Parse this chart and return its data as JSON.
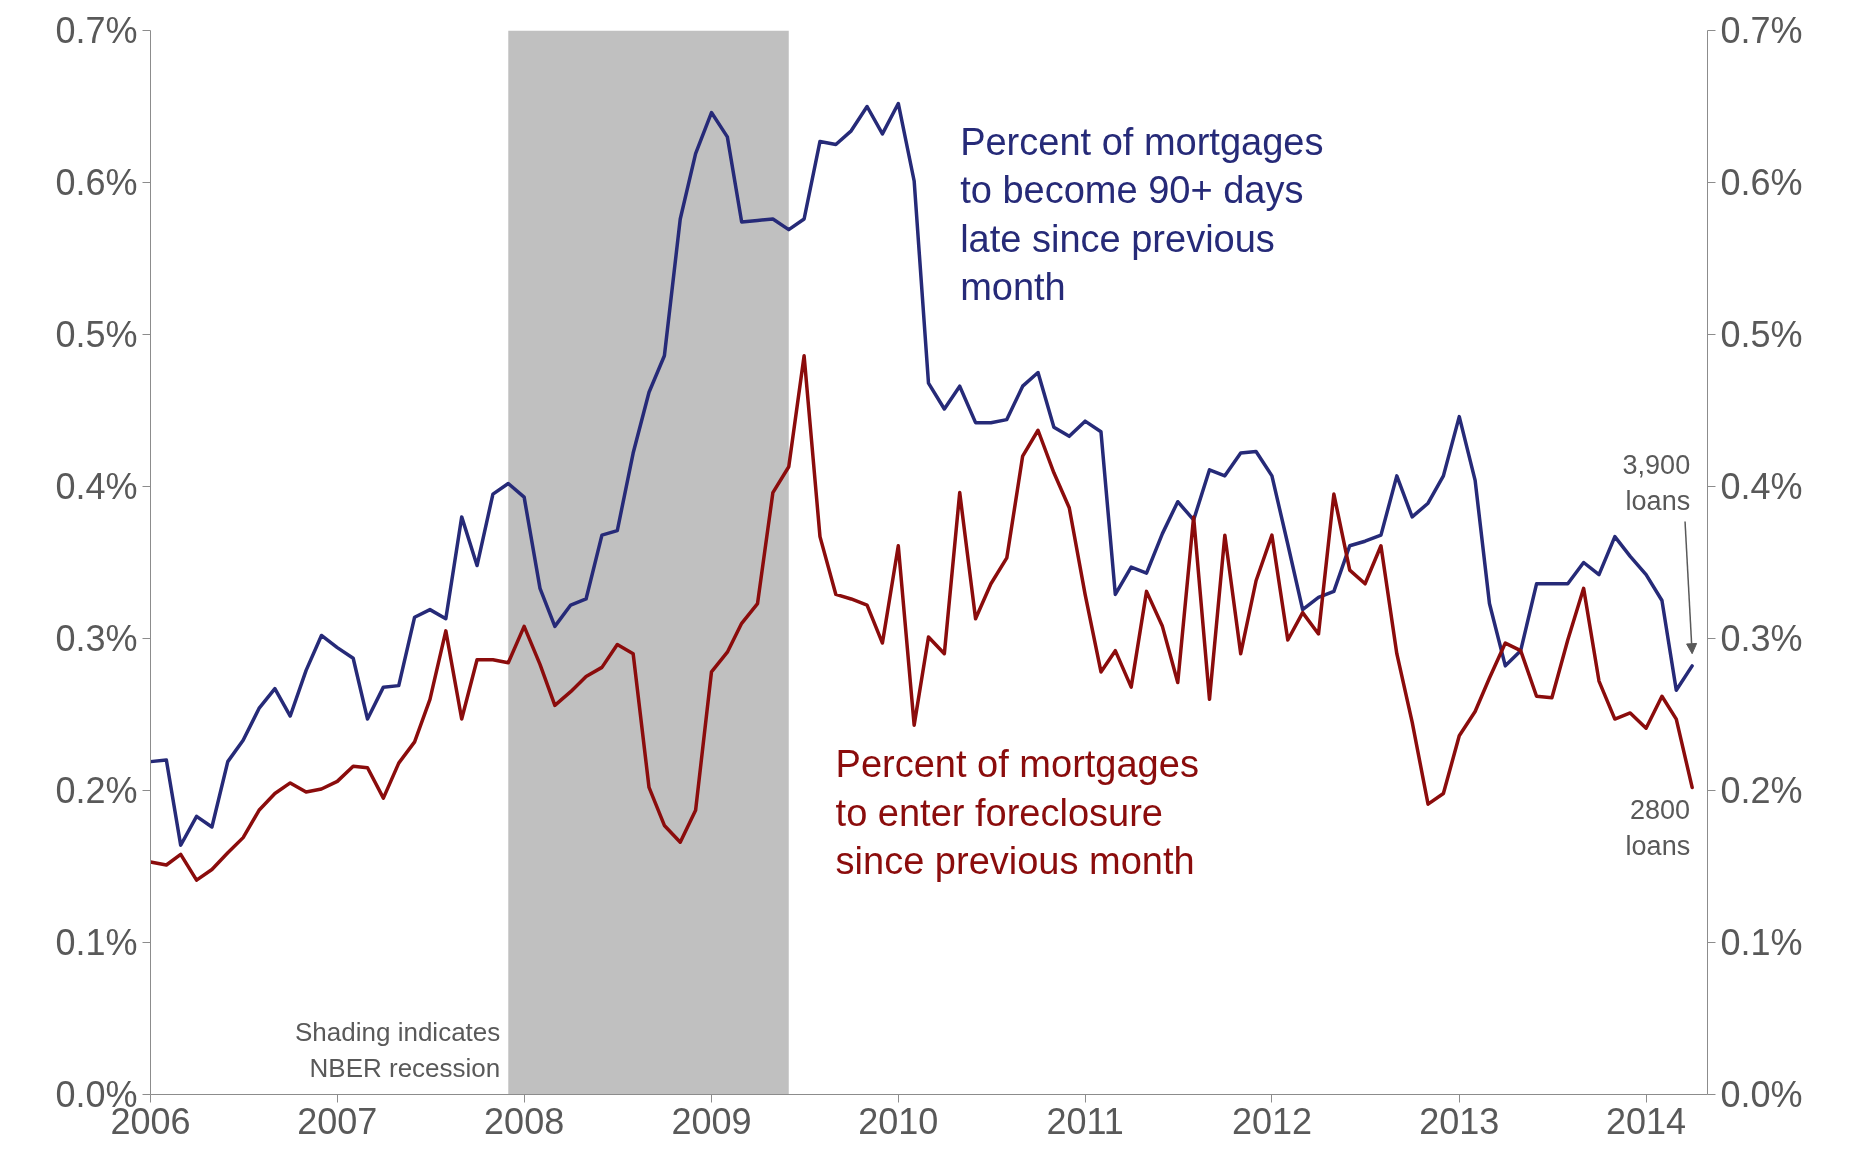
{
  "chart_data": {
    "type": "line",
    "x": [
      "2006-01",
      "2006-02",
      "2006-03",
      "2006-04",
      "2006-05",
      "2006-06",
      "2006-07",
      "2006-08",
      "2006-09",
      "2006-10",
      "2006-11",
      "2006-12",
      "2007-01",
      "2007-02",
      "2007-03",
      "2007-04",
      "2007-05",
      "2007-06",
      "2007-07",
      "2007-08",
      "2007-09",
      "2007-10",
      "2007-11",
      "2007-12",
      "2008-01",
      "2008-02",
      "2008-03",
      "2008-04",
      "2008-05",
      "2008-06",
      "2008-07",
      "2008-08",
      "2008-09",
      "2008-10",
      "2008-11",
      "2008-12",
      "2009-01",
      "2009-02",
      "2009-03",
      "2009-04",
      "2009-05",
      "2009-06",
      "2009-07",
      "2009-08",
      "2009-09",
      "2009-10",
      "2009-11",
      "2009-12",
      "2010-01",
      "2010-02",
      "2010-03",
      "2010-04",
      "2010-05",
      "2010-06",
      "2010-07",
      "2010-08",
      "2010-09",
      "2010-10",
      "2010-11",
      "2010-12",
      "2011-01",
      "2011-02",
      "2011-03",
      "2011-04",
      "2011-05",
      "2011-06",
      "2011-07",
      "2011-08",
      "2011-09",
      "2011-10",
      "2011-11",
      "2011-12",
      "2012-01",
      "2012-02",
      "2012-03",
      "2012-04",
      "2012-05",
      "2012-06",
      "2012-07",
      "2012-08",
      "2012-09",
      "2012-10",
      "2012-11",
      "2012-12",
      "2013-01",
      "2013-02",
      "2013-03",
      "2013-04",
      "2013-05",
      "2013-06",
      "2013-07",
      "2013-08",
      "2013-09",
      "2013-10",
      "2013-11",
      "2013-12",
      "2014-01",
      "2014-02",
      "2014-03",
      "2014-04"
    ],
    "series": [
      {
        "name": "Percent of mortgages to become 90+ days late since previous month",
        "color": "#262a78",
        "values": [
          0.219,
          0.22,
          0.164,
          0.183,
          0.176,
          0.219,
          0.233,
          0.254,
          0.267,
          0.249,
          0.279,
          0.302,
          0.294,
          0.287,
          0.247,
          0.268,
          0.269,
          0.314,
          0.319,
          0.313,
          0.38,
          0.348,
          0.395,
          0.402,
          0.393,
          0.333,
          0.308,
          0.322,
          0.326,
          0.368,
          0.371,
          0.422,
          0.462,
          0.486,
          0.576,
          0.619,
          0.646,
          0.63,
          0.574,
          0.575,
          0.576,
          0.569,
          0.576,
          0.627,
          0.625,
          0.634,
          0.65,
          0.632,
          0.652,
          0.601,
          0.468,
          0.451,
          0.466,
          0.442,
          0.442,
          0.444,
          0.466,
          0.475,
          0.439,
          0.433,
          0.443,
          0.436,
          0.329,
          0.347,
          0.343,
          0.369,
          0.39,
          0.378,
          0.411,
          0.407,
          0.422,
          0.423,
          0.407,
          0.362,
          0.319,
          0.327,
          0.331,
          0.361,
          0.364,
          0.368,
          0.407,
          0.38,
          0.389,
          0.407,
          0.446,
          0.404,
          0.323,
          0.282,
          0.292,
          0.336,
          0.336,
          0.336,
          0.35,
          0.342,
          0.367,
          0.354,
          0.342,
          0.325,
          0.266,
          0.282
        ]
      },
      {
        "name": "Percent of mortgages to enter foreclosure since previous month",
        "color": "#8b0c0c",
        "values": [
          0.153,
          0.151,
          0.158,
          0.141,
          0.148,
          0.159,
          0.169,
          0.187,
          0.198,
          0.205,
          0.199,
          0.201,
          0.206,
          0.216,
          0.215,
          0.195,
          0.218,
          0.232,
          0.26,
          0.305,
          0.247,
          0.286,
          0.286,
          0.284,
          0.308,
          0.283,
          0.256,
          0.265,
          0.275,
          0.281,
          0.296,
          0.29,
          0.202,
          0.177,
          0.166,
          0.187,
          0.278,
          0.291,
          0.31,
          0.323,
          0.396,
          0.413,
          0.486,
          0.367,
          0.329,
          0.326,
          0.322,
          0.297,
          0.361,
          0.243,
          0.301,
          0.29,
          0.396,
          0.313,
          0.336,
          0.353,
          0.42,
          0.437,
          0.409,
          0.386,
          0.329,
          0.278,
          0.292,
          0.268,
          0.331,
          0.308,
          0.271,
          0.38,
          0.26,
          0.368,
          0.29,
          0.338,
          0.368,
          0.299,
          0.317,
          0.303,
          0.395,
          0.345,
          0.336,
          0.361,
          0.29,
          0.245,
          0.191,
          0.198,
          0.236,
          0.252,
          0.274,
          0.297,
          0.292,
          0.262,
          0.261,
          0.299,
          0.333,
          0.272,
          0.247,
          0.251,
          0.241,
          0.262,
          0.247,
          0.202
        ]
      }
    ],
    "xlim": [
      "2006-01",
      "2014-05"
    ],
    "xticks": [
      {
        "value": "2006",
        "label": "2006"
      },
      {
        "value": "2007",
        "label": "2007"
      },
      {
        "value": "2008",
        "label": "2008"
      },
      {
        "value": "2009",
        "label": "2009"
      },
      {
        "value": "2010",
        "label": "2010"
      },
      {
        "value": "2011",
        "label": "2011"
      },
      {
        "value": "2012",
        "label": "2012"
      },
      {
        "value": "2013",
        "label": "2013"
      },
      {
        "value": "2014",
        "label": "2014"
      }
    ],
    "ylim": [
      0,
      0.7
    ],
    "yticks": [
      {
        "value": 0,
        "label": "0.0%"
      },
      {
        "value": 0.1,
        "label": "0.1%"
      },
      {
        "value": 0.2,
        "label": "0.2%"
      },
      {
        "value": 0.3,
        "label": "0.3%"
      },
      {
        "value": 0.4,
        "label": "0.4%"
      },
      {
        "value": 0.5,
        "label": "0.5%"
      },
      {
        "value": 0.6,
        "label": "0.6%"
      },
      {
        "value": 0.7,
        "label": "0.7%"
      }
    ],
    "y2lim": [
      0,
      0.7
    ],
    "y2ticks": [
      {
        "value": 0,
        "label": "0.0%"
      },
      {
        "value": 0.1,
        "label": "0.1%"
      },
      {
        "value": 0.2,
        "label": "0.2%"
      },
      {
        "value": 0.3,
        "label": "0.3%"
      },
      {
        "value": 0.4,
        "label": "0.4%"
      },
      {
        "value": 0.5,
        "label": "0.5%"
      },
      {
        "value": 0.6,
        "label": "0.6%"
      },
      {
        "value": 0.7,
        "label": "0.7%"
      }
    ],
    "bands": [
      {
        "axis": "x",
        "from": "2007-12",
        "to": "2009-06",
        "label": "Shading indicates\nNBER recession",
        "color": "#c0c0c0"
      }
    ],
    "annotations": [
      "3,900\nloans",
      {
        "text": "2800\nloans",
        "x": "2014-04",
        "y": 0.202
      }
    ]
  }
}
